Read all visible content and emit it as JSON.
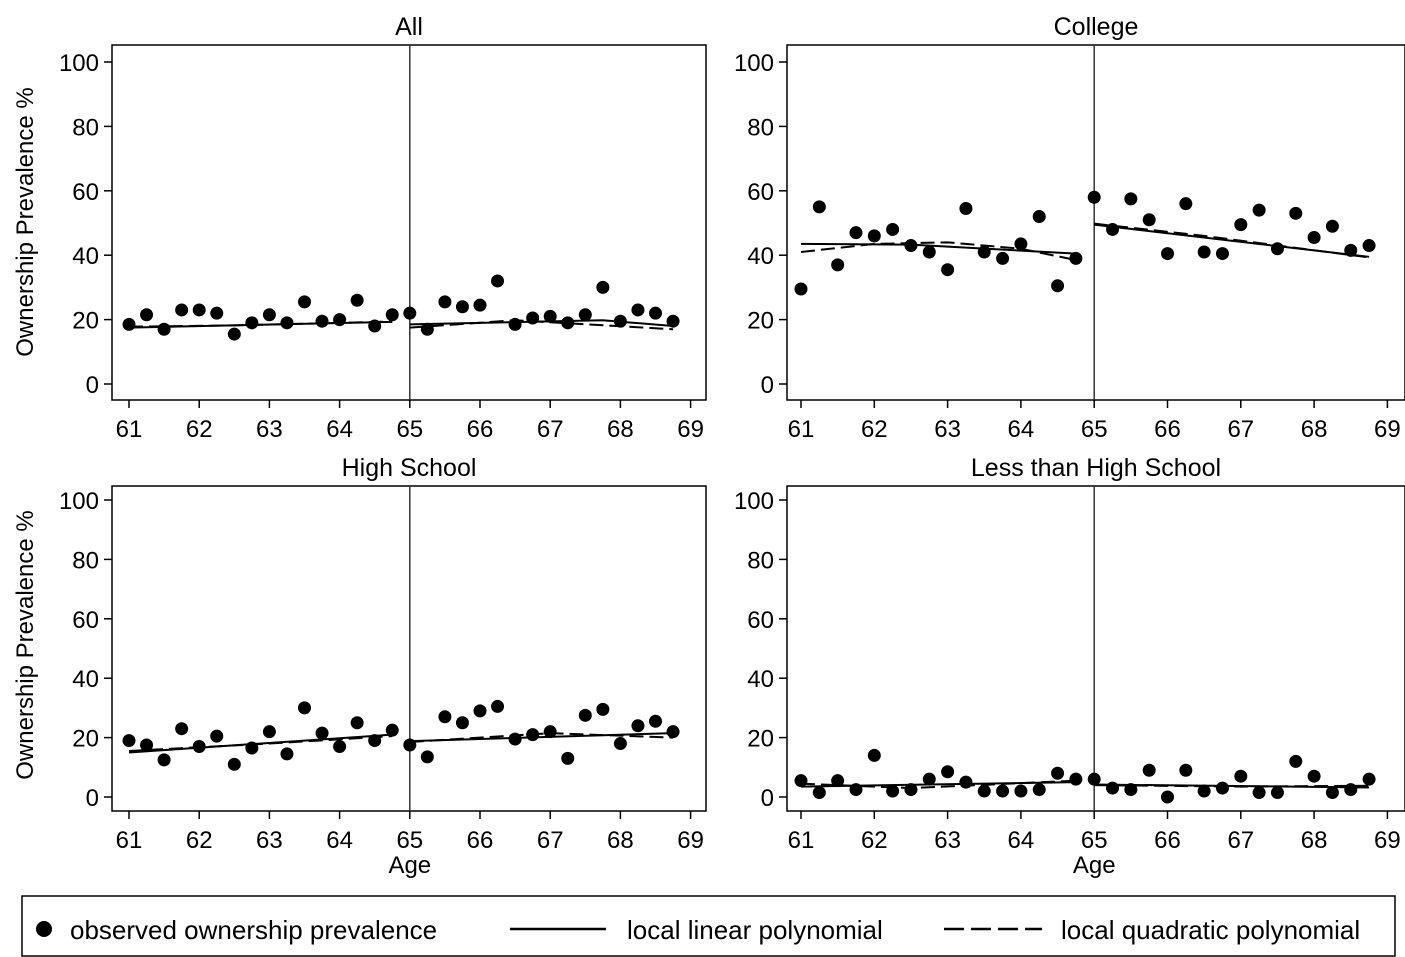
{
  "chart_data": [
    {
      "type": "scatter",
      "title": "All",
      "xlabel": "",
      "ylabel": "Ownership Prevalence %",
      "xlim": [
        61,
        69
      ],
      "ylim": [
        0,
        100
      ],
      "xticks": [
        61,
        62,
        63,
        64,
        65,
        66,
        67,
        68,
        69
      ],
      "yticks": [
        0,
        20,
        40,
        60,
        80,
        100
      ],
      "cutoff": 65,
      "points": {
        "x": [
          61,
          61.25,
          61.5,
          61.75,
          62,
          62.25,
          62.5,
          62.75,
          63,
          63.25,
          63.5,
          63.75,
          64,
          64.25,
          64.5,
          64.75,
          65,
          65.25,
          65.5,
          65.75,
          66,
          66.25,
          66.5,
          66.75,
          67,
          67.25,
          67.5,
          67.75,
          68,
          68.25,
          68.5,
          68.75
        ],
        "y": [
          18.5,
          21.5,
          17,
          23,
          23,
          22,
          15.5,
          19,
          21.5,
          19,
          25.5,
          19.5,
          20,
          26,
          18,
          21.5,
          22,
          17,
          25.5,
          24,
          24.5,
          32,
          18.5,
          20.5,
          21,
          19,
          21.5,
          30,
          19.5,
          23,
          22,
          19.5
        ]
      },
      "linear": {
        "left": [
          [
            61,
            17.5
          ],
          [
            64.75,
            19.3
          ]
        ],
        "right": [
          [
            65,
            18.5
          ],
          [
            67.75,
            19.8
          ],
          [
            68.75,
            18
          ]
        ]
      },
      "quadratic": {
        "left": [
          [
            61,
            17.8
          ],
          [
            62.5,
            18.2
          ],
          [
            64.75,
            19.4
          ]
        ],
        "right": [
          [
            65,
            17.5
          ],
          [
            66.5,
            19.8
          ],
          [
            68.75,
            17
          ]
        ]
      }
    },
    {
      "type": "scatter",
      "title": "College",
      "xlabel": "",
      "ylabel": "",
      "xlim": [
        61,
        69
      ],
      "ylim": [
        0,
        100
      ],
      "xticks": [
        61,
        62,
        63,
        64,
        65,
        66,
        67,
        68,
        69
      ],
      "yticks": [
        0,
        20,
        40,
        60,
        80,
        100
      ],
      "cutoff": 65,
      "points": {
        "x": [
          61,
          61.25,
          61.5,
          61.75,
          62,
          62.25,
          62.5,
          62.75,
          63,
          63.25,
          63.5,
          63.75,
          64,
          64.25,
          64.5,
          64.75,
          65,
          65.25,
          65.5,
          65.75,
          66,
          66.25,
          66.5,
          66.75,
          67,
          67.25,
          67.5,
          67.75,
          68,
          68.25,
          68.5,
          68.75
        ],
        "y": [
          29.5,
          55,
          37,
          47,
          46,
          48,
          43,
          41,
          35.5,
          54.5,
          41,
          39,
          43.5,
          52,
          30.5,
          39,
          58,
          48,
          57.5,
          51,
          40.5,
          56,
          41,
          40.5,
          49.5,
          54,
          42,
          53,
          45.5,
          49,
          41.5,
          43
        ]
      },
      "linear": {
        "left": [
          [
            61,
            43.5
          ],
          [
            62.5,
            43.3
          ],
          [
            64.75,
            40.5
          ]
        ],
        "right": [
          [
            65,
            49.5
          ],
          [
            68.75,
            39.5
          ]
        ]
      },
      "quadratic": {
        "left": [
          [
            61,
            41
          ],
          [
            62,
            43.5
          ],
          [
            63,
            44
          ],
          [
            64,
            42
          ],
          [
            64.75,
            38.5
          ]
        ],
        "right": [
          [
            65,
            49.8
          ],
          [
            66.5,
            46
          ],
          [
            68.75,
            39.3
          ]
        ]
      }
    },
    {
      "type": "scatter",
      "title": "High School",
      "xlabel": "Age",
      "ylabel": "Ownership Prevalence %",
      "xlim": [
        61,
        69
      ],
      "ylim": [
        0,
        100
      ],
      "xticks": [
        61,
        62,
        63,
        64,
        65,
        66,
        67,
        68,
        69
      ],
      "yticks": [
        0,
        20,
        40,
        60,
        80,
        100
      ],
      "cutoff": 65,
      "points": {
        "x": [
          61,
          61.25,
          61.5,
          61.75,
          62,
          62.25,
          62.5,
          62.75,
          63,
          63.25,
          63.5,
          63.75,
          64,
          64.25,
          64.5,
          64.75,
          65,
          65.25,
          65.5,
          65.75,
          66,
          66.25,
          66.5,
          66.75,
          67,
          67.25,
          67.5,
          67.75,
          68,
          68.25,
          68.5,
          68.75
        ],
        "y": [
          19,
          17.5,
          12.5,
          23,
          17,
          20.5,
          11,
          16.5,
          22,
          14.5,
          30,
          21.5,
          17,
          25,
          19,
          22.5,
          17.5,
          13.5,
          27,
          25,
          29,
          30.5,
          19.5,
          21,
          22,
          13,
          27.5,
          29.5,
          18,
          24,
          25.5,
          22
        ]
      },
      "linear": {
        "left": [
          [
            61,
            15
          ],
          [
            64.75,
            21
          ]
        ],
        "right": [
          [
            65,
            18.8
          ],
          [
            68.75,
            21.5
          ]
        ]
      },
      "quadratic": {
        "left": [
          [
            61,
            15.5
          ],
          [
            63,
            18
          ],
          [
            64.75,
            20.5
          ]
        ],
        "right": [
          [
            65,
            18.5
          ],
          [
            67,
            21.5
          ],
          [
            68.75,
            20
          ]
        ]
      }
    },
    {
      "type": "scatter",
      "title": "Less than High School",
      "xlabel": "Age",
      "ylabel": "",
      "xlim": [
        61,
        69
      ],
      "ylim": [
        0,
        100
      ],
      "xticks": [
        61,
        62,
        63,
        64,
        65,
        66,
        67,
        68,
        69
      ],
      "yticks": [
        0,
        20,
        40,
        60,
        80,
        100
      ],
      "cutoff": 65,
      "points": {
        "x": [
          61,
          61.25,
          61.5,
          61.75,
          62,
          62.25,
          62.5,
          62.75,
          63,
          63.25,
          63.5,
          63.75,
          64,
          64.25,
          64.5,
          64.75,
          65,
          65.25,
          65.5,
          65.75,
          66,
          66.25,
          66.5,
          66.75,
          67,
          67.25,
          67.5,
          67.75,
          68,
          68.25,
          68.5,
          68.75
        ],
        "y": [
          5.5,
          1.5,
          5.5,
          2.5,
          14,
          2,
          2.5,
          6,
          8.5,
          5,
          2,
          2,
          2,
          2.5,
          8,
          6,
          6,
          3,
          2.5,
          9,
          0,
          9,
          2,
          3,
          7,
          1.5,
          1.5,
          12,
          7,
          1.5,
          2.5,
          6
        ]
      },
      "linear": {
        "left": [
          [
            61,
            3.5
          ],
          [
            64.75,
            5
          ]
        ],
        "right": [
          [
            65,
            4.2
          ],
          [
            68.75,
            3.2
          ]
        ]
      },
      "quadratic": {
        "left": [
          [
            61,
            4.5
          ],
          [
            62.5,
            3
          ],
          [
            64.75,
            5.5
          ]
        ],
        "right": [
          [
            65,
            4
          ],
          [
            67,
            3.5
          ],
          [
            68.75,
            3.8
          ]
        ]
      }
    }
  ],
  "legend": {
    "items": [
      {
        "marker": "dot",
        "label": "observed ownership prevalence"
      },
      {
        "marker": "solid-line",
        "label": "local linear polynomial"
      },
      {
        "marker": "dashed-line",
        "label": "local quadratic polynomial"
      }
    ]
  }
}
